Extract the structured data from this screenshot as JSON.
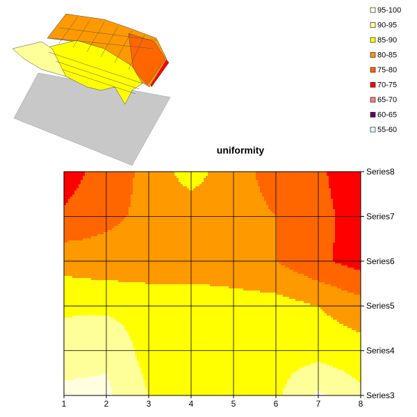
{
  "chart_data": [
    {
      "type": "surface",
      "view": "3d",
      "legend": {
        "placement": "top-right",
        "entries": [
          {
            "label": "95-100",
            "color": "#FFFFE0"
          },
          {
            "label": "90-95",
            "color": "#FFFF99"
          },
          {
            "label": "85-90",
            "color": "#FFFF00"
          },
          {
            "label": "80-85",
            "color": "#FF9900"
          },
          {
            "label": "75-80",
            "color": "#FF6600"
          },
          {
            "label": "70-75",
            "color": "#FF0000"
          },
          {
            "label": "65-70",
            "color": "#FF8080"
          },
          {
            "label": "60-65",
            "color": "#660066"
          },
          {
            "label": "55-60",
            "color": "#E0FFFF"
          }
        ]
      }
    },
    {
      "type": "heatmap",
      "style": "contour",
      "title": "uniformity",
      "x": [
        "1",
        "2",
        "3",
        "4",
        "5",
        "6",
        "7",
        "8"
      ],
      "series": [
        "Series3",
        "Series4",
        "Series5",
        "Series6",
        "Series7",
        "Series8"
      ],
      "values": [
        [
          96,
          96,
          90,
          89,
          89,
          89,
          96,
          91
        ],
        [
          93,
          94,
          88,
          88,
          88,
          88,
          88,
          87
        ],
        [
          89,
          89,
          88,
          88,
          87,
          87,
          85,
          82
        ],
        [
          83,
          82,
          82,
          82,
          82,
          80,
          76,
          73
        ],
        [
          76,
          79,
          81,
          81,
          81,
          80,
          77,
          72
        ],
        [
          72,
          78,
          81,
          88,
          81,
          79,
          76,
          71
        ]
      ],
      "color_bands": [
        {
          "min": 95,
          "max": 100,
          "color": "#FFFFE0"
        },
        {
          "min": 90,
          "max": 95,
          "color": "#FFFF99"
        },
        {
          "min": 85,
          "max": 90,
          "color": "#FFFF00"
        },
        {
          "min": 80,
          "max": 85,
          "color": "#FF9900"
        },
        {
          "min": 75,
          "max": 80,
          "color": "#FF6600"
        },
        {
          "min": 70,
          "max": 75,
          "color": "#FF0000"
        }
      ],
      "grid": true
    }
  ]
}
